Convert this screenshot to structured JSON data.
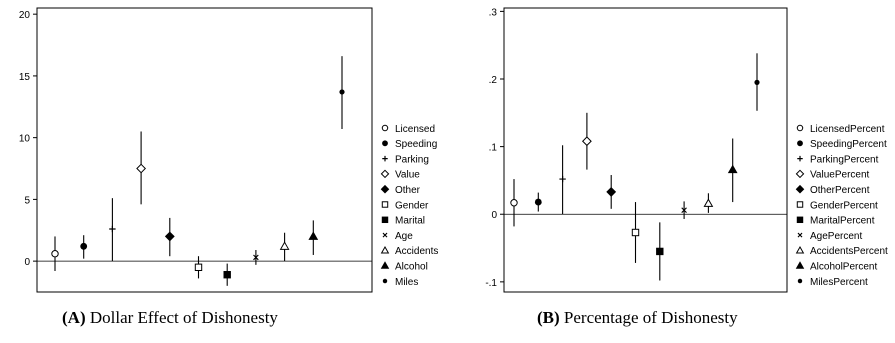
{
  "captions": [
    {
      "label": "(A)",
      "text": "Dollar Effect of Dishonesty"
    },
    {
      "label": "(B)",
      "text": "Percentage of Dishonesty"
    }
  ],
  "chart_data": [
    {
      "type": "scatter",
      "subtype": "error-bar",
      "title": "",
      "xlabel": "",
      "ylabel": "",
      "ylim": [
        -2.5,
        20.5
      ],
      "yticks": [
        0,
        5,
        10,
        15,
        20
      ],
      "ytick_labels": [
        "0",
        "5",
        "10",
        "15",
        "20"
      ],
      "reference_line": 0,
      "legend_position": "right",
      "series": [
        {
          "name": "Licensed",
          "marker": "circle-open",
          "value": 0.6,
          "low": -0.8,
          "high": 2.0
        },
        {
          "name": "Speeding",
          "marker": "circle-filled",
          "value": 1.2,
          "low": 0.2,
          "high": 2.1
        },
        {
          "name": "Parking",
          "marker": "plus",
          "value": 2.6,
          "low": 0.0,
          "high": 5.1
        },
        {
          "name": "Value",
          "marker": "diamond-open",
          "value": 7.5,
          "low": 4.6,
          "high": 10.5
        },
        {
          "name": "Other",
          "marker": "diamond-filled",
          "value": 2.0,
          "low": 0.4,
          "high": 3.5
        },
        {
          "name": "Gender",
          "marker": "square-open",
          "value": -0.5,
          "low": -1.4,
          "high": 0.4
        },
        {
          "name": "Marital",
          "marker": "square-filled",
          "value": -1.1,
          "low": -2.0,
          "high": -0.2
        },
        {
          "name": "Age",
          "marker": "x",
          "value": 0.3,
          "low": -0.3,
          "high": 0.9
        },
        {
          "name": "Accidents",
          "marker": "triangle-open",
          "value": 1.2,
          "low": 0.0,
          "high": 2.3
        },
        {
          "name": "Alcohol",
          "marker": "triangle-filled",
          "value": 2.0,
          "low": 0.5,
          "high": 3.3
        },
        {
          "name": "Miles",
          "marker": "dot",
          "value": 13.7,
          "low": 10.7,
          "high": 16.6
        }
      ]
    },
    {
      "type": "scatter",
      "subtype": "error-bar",
      "title": "",
      "xlabel": "",
      "ylabel": "",
      "ylim": [
        -0.115,
        0.305
      ],
      "yticks": [
        -0.1,
        0,
        0.1,
        0.2,
        0.3
      ],
      "ytick_labels": [
        "-.1",
        "0",
        ".1",
        ".2",
        ".3"
      ],
      "reference_line": 0,
      "legend_position": "right",
      "series": [
        {
          "name": "LicensedPercent",
          "marker": "circle-open",
          "value": 0.017,
          "low": -0.018,
          "high": 0.052
        },
        {
          "name": "SpeedingPercent",
          "marker": "circle-filled",
          "value": 0.018,
          "low": 0.004,
          "high": 0.032
        },
        {
          "name": "ParkingPercent",
          "marker": "plus",
          "value": 0.052,
          "low": 0.0,
          "high": 0.102
        },
        {
          "name": "ValuePercent",
          "marker": "diamond-open",
          "value": 0.108,
          "low": 0.066,
          "high": 0.15
        },
        {
          "name": "OtherPercent",
          "marker": "diamond-filled",
          "value": 0.033,
          "low": 0.008,
          "high": 0.058
        },
        {
          "name": "GenderPercent",
          "marker": "square-open",
          "value": -0.027,
          "low": -0.072,
          "high": 0.018
        },
        {
          "name": "MaritalPercent",
          "marker": "square-filled",
          "value": -0.055,
          "low": -0.098,
          "high": -0.012
        },
        {
          "name": "AgePercent",
          "marker": "x",
          "value": 0.006,
          "low": -0.007,
          "high": 0.019
        },
        {
          "name": "AccidentsPercent",
          "marker": "triangle-open",
          "value": 0.016,
          "low": 0.002,
          "high": 0.031
        },
        {
          "name": "AlcoholPercent",
          "marker": "triangle-filled",
          "value": 0.066,
          "low": 0.018,
          "high": 0.112
        },
        {
          "name": "MilesPercent",
          "marker": "dot",
          "value": 0.195,
          "low": 0.153,
          "high": 0.238
        }
      ]
    }
  ]
}
